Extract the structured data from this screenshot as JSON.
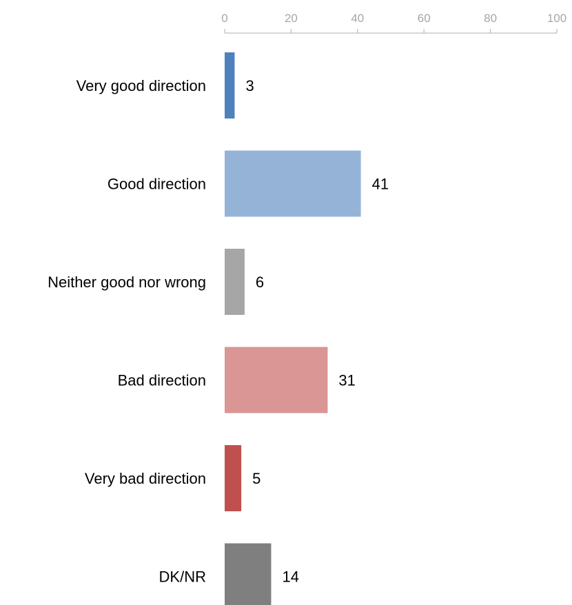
{
  "chart_data": {
    "type": "bar",
    "orientation": "horizontal",
    "categories": [
      "Very good direction",
      "Good direction",
      "Neither good nor wrong",
      "Bad direction",
      "Very bad direction",
      "DK/NR"
    ],
    "values": [
      3,
      41,
      6,
      31,
      5,
      14
    ],
    "value_labels": [
      "3",
      "41",
      "6",
      "31",
      "5",
      "14"
    ],
    "colors": [
      "#4f81bd",
      "#95b3d7",
      "#a6a6a6",
      "#d99694",
      "#c0504d",
      "#7f7f7f"
    ],
    "xlim": [
      0,
      100
    ],
    "xticks": [
      0,
      20,
      40,
      60,
      80,
      100
    ],
    "xtick_labels": [
      "0",
      "20",
      "40",
      "60",
      "80",
      "100"
    ],
    "axis_position": "top",
    "grid": false,
    "legend": "none",
    "title": "",
    "xlabel": "",
    "ylabel": ""
  }
}
